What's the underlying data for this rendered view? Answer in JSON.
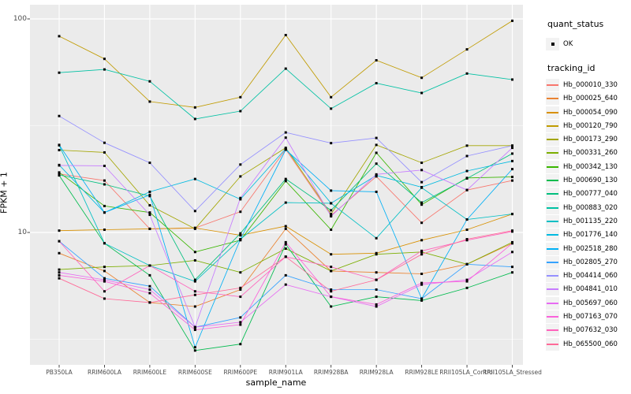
{
  "figure": {
    "y_axis_ticks": [
      "100",
      "10"
    ],
    "legend": {
      "quant_status_title": "quant_status",
      "quant_status_items": [
        {
          "label": "OK"
        }
      ],
      "tracking_id_title": "tracking_id"
    }
  },
  "chart_data": {
    "type": "line",
    "title": "",
    "xlabel": "sample_name",
    "ylabel": "FPKM + 1",
    "y_scale": "log10",
    "y_ticks": [
      10,
      100
    ],
    "y_minor_gridlines": [
      3.162,
      31.62
    ],
    "ylim": [
      2.4,
      115
    ],
    "grid": true,
    "panel_background": "#EBEBEB",
    "gridline_color": "#FFFFFF",
    "point_marker": "black-square",
    "point_color": "#000000",
    "legend_position": "right",
    "categories": [
      "PB350LA",
      "RRIM600LA",
      "RRIM600LE",
      "RRIM600SE",
      "RRIM600PE",
      "RRIM901LA",
      "RRIM928BA",
      "RRIM928LA",
      "RRIM928LE",
      "RRII105LA_Control",
      "RRII105LA_Stressed"
    ],
    "series": [
      {
        "name": "Hb_000010_330",
        "color": "#F8766D",
        "values": [
          18.8,
          17.5,
          10.4,
          10.5,
          12.5,
          24.5,
          12.0,
          18.3,
          11.1,
          15.8,
          17.5
        ]
      },
      {
        "name": "Hb_000025_640",
        "color": "#EA8331",
        "values": [
          8.0,
          6.6,
          4.7,
          4.5,
          5.4,
          10.4,
          6.6,
          6.5,
          6.4,
          7.1,
          8.9
        ]
      },
      {
        "name": "Hb_000054_090",
        "color": "#D89000",
        "values": [
          10.2,
          10.3,
          10.4,
          10.5,
          9.7,
          10.7,
          7.9,
          8.0,
          9.2,
          10.3,
          12.2
        ]
      },
      {
        "name": "Hb_000120_790",
        "color": "#C09B00",
        "values": [
          83,
          65,
          41,
          38.5,
          43,
          84,
          43,
          64,
          53,
          72,
          98
        ]
      },
      {
        "name": "Hb_000173_290",
        "color": "#A3A500",
        "values": [
          24.3,
          23.7,
          13.4,
          10.4,
          18.3,
          24.9,
          12.2,
          25.7,
          21.2,
          25.5,
          25.5
        ]
      },
      {
        "name": "Hb_000331_260",
        "color": "#7CAE00",
        "values": [
          6.7,
          6.9,
          7.0,
          7.4,
          6.5,
          8.4,
          6.6,
          7.9,
          8.1,
          7.1,
          9.0
        ]
      },
      {
        "name": "Hb_000342_130",
        "color": "#39B600",
        "values": [
          19.1,
          13.3,
          12.4,
          8.1,
          9.2,
          17.4,
          10.3,
          23.6,
          13.5,
          18.0,
          18.2
        ]
      },
      {
        "name": "Hb_000690_130",
        "color": "#00BB4E",
        "values": [
          18.5,
          8.9,
          6.3,
          2.8,
          3.0,
          8.8,
          4.5,
          5.0,
          4.8,
          5.5,
          6.5
        ]
      },
      {
        "name": "Hb_000777_040",
        "color": "#00BF7D",
        "values": [
          18.6,
          16.8,
          14.8,
          6.0,
          9.9,
          17.8,
          12.7,
          21.0,
          13.8,
          17.9,
          23.4
        ]
      },
      {
        "name": "Hb_000883_020",
        "color": "#00C1A3",
        "values": [
          56,
          58,
          51,
          34,
          37,
          58.5,
          38,
          50,
          45,
          55.5,
          52
        ]
      },
      {
        "name": "Hb_001135_220",
        "color": "#00BFC4",
        "values": [
          25.6,
          8.9,
          7.0,
          5.9,
          9.3,
          13.8,
          13.7,
          9.4,
          16.2,
          11.5,
          12.2
        ]
      },
      {
        "name": "Hb_001776_140",
        "color": "#00BAE0",
        "values": [
          20.7,
          12.4,
          15.5,
          17.8,
          14.3,
          24.7,
          13.7,
          18.5,
          16.3,
          19.4,
          21.6
        ]
      },
      {
        "name": "Hb_002518_280",
        "color": "#00B0F6",
        "values": [
          25.7,
          12.4,
          15.0,
          2.9,
          9.3,
          24.4,
          15.7,
          15.5,
          4.9,
          11.5,
          19.8
        ]
      },
      {
        "name": "Hb_002805_270",
        "color": "#35A2FF",
        "values": [
          9.1,
          6.1,
          5.6,
          3.6,
          4.0,
          6.3,
          5.4,
          5.4,
          4.9,
          7.1,
          6.9
        ]
      },
      {
        "name": "Hb_004414_060",
        "color": "#9590FF",
        "values": [
          35.1,
          26.3,
          21.2,
          12.6,
          20.8,
          29.4,
          26.2,
          27.7,
          17.2,
          22.8,
          25.5
        ]
      },
      {
        "name": "Hb_004841_010",
        "color": "#C77CFF",
        "values": [
          20.6,
          20.5,
          12.1,
          3.6,
          14.5,
          27.8,
          11.9,
          18.7,
          19.6,
          15.8,
          24.9
        ]
      },
      {
        "name": "Hb_005697_060",
        "color": "#E76BF3",
        "values": [
          6.5,
          6.0,
          5.4,
          3.6,
          3.8,
          5.7,
          5.0,
          4.5,
          5.7,
          6.0,
          8.1
        ]
      },
      {
        "name": "Hb_007163_070",
        "color": "#FA62DB",
        "values": [
          6.3,
          5.9,
          5.2,
          3.5,
          3.7,
          9.0,
          5.0,
          4.6,
          5.8,
          5.9,
          8.9
        ]
      },
      {
        "name": "Hb_007632_030",
        "color": "#FF62BC",
        "values": [
          9.1,
          5.3,
          7.0,
          5.3,
          5.0,
          7.7,
          6.9,
          6.0,
          8.2,
          9.2,
          10.1
        ]
      },
      {
        "name": "Hb_065500_060",
        "color": "#FF6A98",
        "values": [
          6.1,
          4.9,
          4.7,
          5.1,
          5.5,
          7.7,
          5.3,
          6.0,
          7.9,
          9.3,
          10.2
        ]
      }
    ]
  }
}
